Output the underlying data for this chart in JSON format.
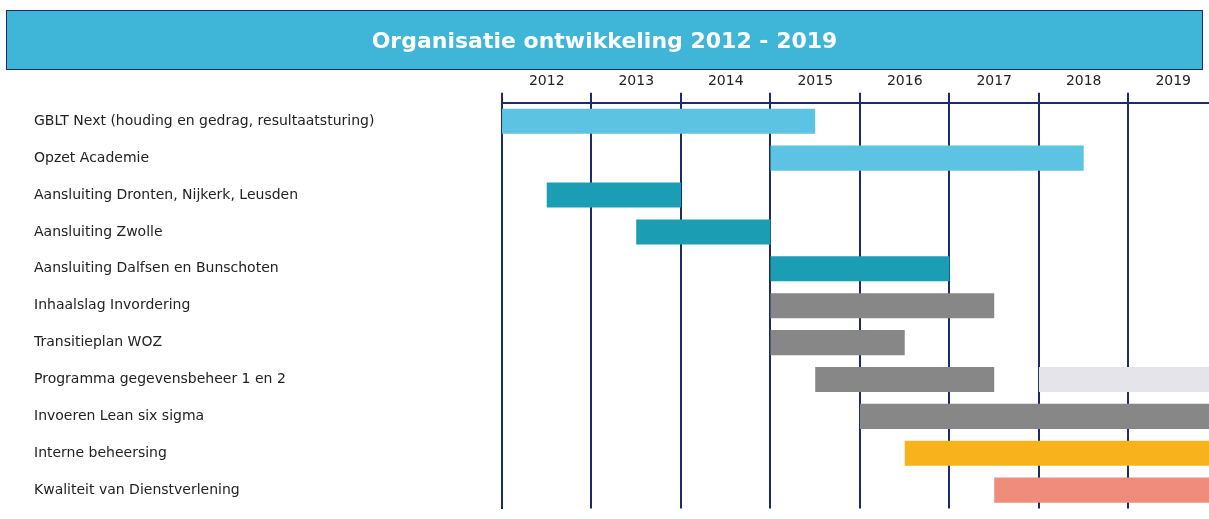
{
  "chart_data": {
    "type": "bar",
    "orientation": "horizontal",
    "title": "Organisatie ontwikkeling 2012 - 2019",
    "categories": [
      "GBLT Next (houding en gedrag, resultaatsturing)",
      "Opzet Academie",
      "Aansluiting Dronten, Nijkerk, Leusden",
      "Aansluiting Zwolle",
      "Aansluiting Dalfsen en Bunschoten",
      "Inhaalslag Invordering",
      "Transitieplan WOZ",
      "Programma gegevensbeheer 1 en 2",
      "Invoeren Lean six sigma",
      "Interne beheersing",
      "Kwaliteit van Dienstverlening"
    ],
    "xlim": [
      2012,
      2019.9
    ],
    "xticks": [
      {
        "value": 2012,
        "label": null
      },
      {
        "value": 2012.5,
        "label": "2012"
      },
      {
        "value": 2013,
        "label": null
      },
      {
        "value": 2013.5,
        "label": "2013"
      },
      {
        "value": 2014,
        "label": null
      },
      {
        "value": 2014.5,
        "label": "2014"
      },
      {
        "value": 2015,
        "label": null
      },
      {
        "value": 2015.5,
        "label": "2015"
      },
      {
        "value": 2016,
        "label": null
      },
      {
        "value": 2016.5,
        "label": "2016"
      },
      {
        "value": 2017,
        "label": null
      },
      {
        "value": 2017.5,
        "label": "2017"
      },
      {
        "value": 2018,
        "label": null
      },
      {
        "value": 2018.5,
        "label": "2018"
      },
      {
        "value": 2019,
        "label": null
      },
      {
        "value": 2019.5,
        "label": "2019"
      }
    ],
    "grid": "x",
    "legend": false,
    "series": [
      {
        "base": [
          2012,
          2015,
          2012.5,
          2013.5,
          2015,
          2015,
          2015,
          2015.5,
          2016,
          2016.5,
          2017.5
        ],
        "values": [
          3.5,
          3.5,
          1.5,
          1.5,
          2,
          2.5,
          1.5,
          2,
          3.9,
          3.4,
          2.4
        ],
        "colors": [
          "#5cc3e3",
          "#5cc3e3",
          "#1b9db3",
          "#1b9db3",
          "#1b9db3",
          "#878787",
          "#878787",
          "#878787",
          "#878787",
          "#f7b21c",
          "#ef8c7c"
        ]
      },
      {
        "base": [
          null,
          null,
          null,
          null,
          null,
          null,
          null,
          2018,
          null,
          null,
          null
        ],
        "values": [
          null,
          null,
          null,
          null,
          null,
          null,
          null,
          1.9,
          null,
          null,
          null
        ],
        "colors": [
          null,
          null,
          null,
          null,
          null,
          null,
          null,
          "#e4e4ea",
          null,
          null,
          null
        ]
      }
    ]
  }
}
